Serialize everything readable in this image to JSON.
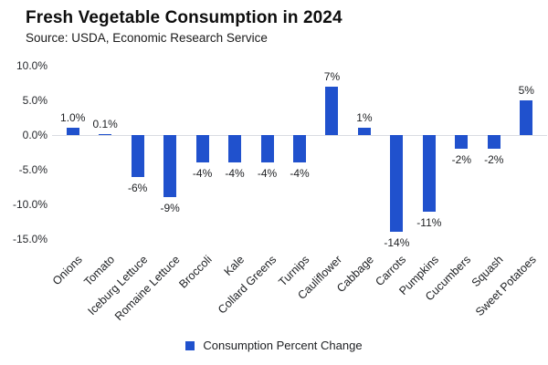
{
  "chart_data": {
    "type": "bar",
    "title": "Fresh Vegetable Consumption in 2024",
    "subtitle": "Source: USDA, Economic Research Service",
    "xlabel": "",
    "ylabel": "",
    "categories": [
      "Onions",
      "Tomato",
      "Iceburg Lettuce",
      "Romaine Lettuce",
      "Broccoli",
      "Kale",
      "Collard Greens",
      "Turnips",
      "Cauliflower",
      "Cabbage",
      "Carrots",
      "Pumpkins",
      "Cucumbers",
      "Squash",
      "Sweet Potatoes"
    ],
    "series": [
      {
        "name": "Consumption Percent Change",
        "values": [
          1.0,
          0.1,
          -6,
          -9,
          -4,
          -4,
          -4,
          -4,
          7,
          1,
          -14,
          -11,
          -2,
          -2,
          5
        ],
        "value_labels": [
          "1.0%",
          "0.1%",
          "-6%",
          "-9%",
          "-4%",
          "-4%",
          "-4%",
          "-4%",
          "7%",
          "1%",
          "-14%",
          "-11%",
          "-2%",
          "-2%",
          "5%"
        ]
      }
    ],
    "y_ticks": [
      {
        "label": "10.0%",
        "value": 10
      },
      {
        "label": "5.0%",
        "value": 5
      },
      {
        "label": "0.0%",
        "value": 0
      },
      {
        "label": "-5.0%",
        "value": -5
      },
      {
        "label": "-10.0%",
        "value": -10
      },
      {
        "label": "-15.0%",
        "value": -15
      }
    ],
    "ylim": [
      -15,
      10
    ],
    "grid": false,
    "legend_position": "bottom"
  },
  "legend": {
    "label": "Consumption Percent Change"
  },
  "colors": {
    "bar": "#2051cd",
    "zero_line": "#d9dce2",
    "title_text": "#0e0e0e",
    "axis_text": "#26282c"
  }
}
